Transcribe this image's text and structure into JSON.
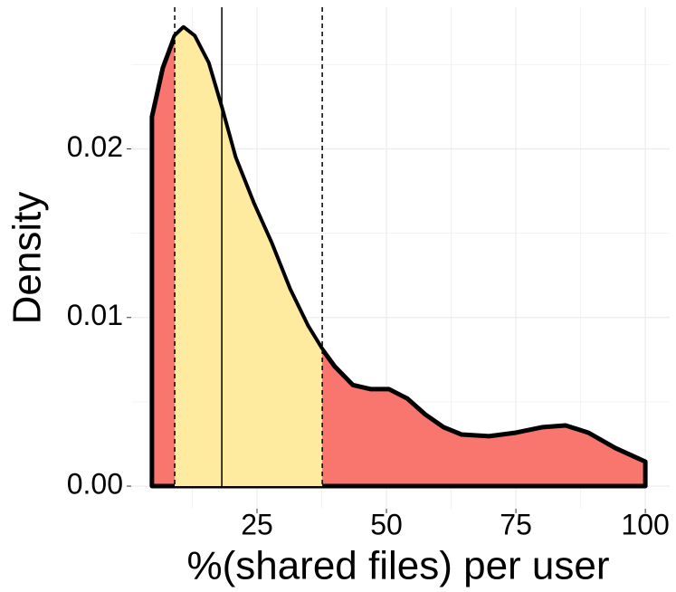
{
  "chart_data": {
    "type": "density",
    "x_label": "%(shared files) per user",
    "y_label": "Density",
    "x": [
      4.7,
      6.8,
      9.1,
      10.8,
      12.9,
      15.6,
      18.2,
      20.8,
      24.3,
      27.8,
      31.3,
      34.8,
      37.4,
      40.0,
      43.5,
      47.0,
      50.5,
      54.0,
      57.5,
      61.0,
      64.5,
      69.8,
      75.0,
      80.2,
      84.6,
      89.0,
      94.2,
      100
    ],
    "values": [
      0.0219,
      0.0248,
      0.0267,
      0.0272,
      0.0267,
      0.0251,
      0.0224,
      0.0195,
      0.0168,
      0.0144,
      0.0117,
      0.0095,
      0.0082,
      0.0071,
      0.006,
      0.00575,
      0.00575,
      0.0052,
      0.00425,
      0.0035,
      0.00306,
      0.00296,
      0.00317,
      0.0035,
      0.0036,
      0.00317,
      0.00226,
      0.00145
    ],
    "color": "#f8766d",
    "shade": {
      "from": 9.1,
      "to": 37.6,
      "color": "#ffeba0"
    },
    "vlines": [
      {
        "x": 9.1,
        "style": "dashed"
      },
      {
        "x": 18.2,
        "style": "solid"
      },
      {
        "x": 37.6,
        "style": "dashed"
      }
    ],
    "xlim": [
      0.7,
      104.7
    ],
    "xticks": [
      25,
      50,
      75,
      100
    ],
    "minor_xticks": [
      12.5,
      37.5,
      62.5,
      87.5
    ],
    "ylim": [
      -0.00134,
      0.0284
    ],
    "yticks": [
      {
        "value": 0,
        "label": "0.00"
      },
      0.01,
      0.02
    ],
    "minor_yticks": [
      0.005,
      0.015,
      0.025
    ],
    "grid": true
  }
}
